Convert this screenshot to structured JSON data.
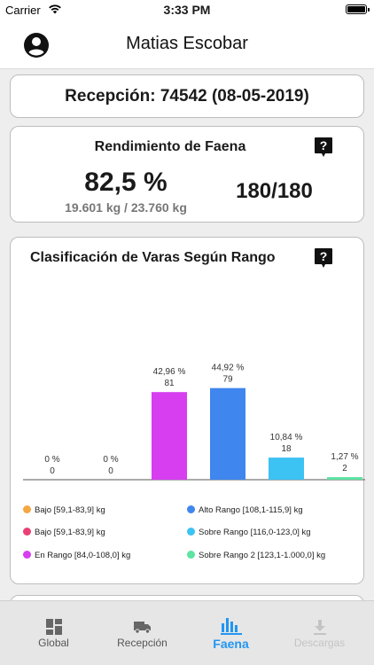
{
  "status": {
    "carrier": "Carrier",
    "time": "3:33 PM"
  },
  "header": {
    "title": "Matias Escobar"
  },
  "reception": {
    "text": "Recepción: 74542 (08-05-2019)"
  },
  "yield": {
    "title": "Rendimiento de Faena",
    "percent": "82,5 %",
    "kg": "19.601 kg / 23.760 kg",
    "count": "180/180"
  },
  "classification": {
    "title": "Clasificación de Varas Según Rango",
    "legend": [
      {
        "label": "Bajo [59,1-83,9] kg",
        "color": "#f5a742"
      },
      {
        "label": "Alto Rango [108,1-115,9] kg",
        "color": "#3f86ee"
      },
      {
        "label": "Bajo [59,1-83,9] kg",
        "color": "#ec3f74"
      },
      {
        "label": "Sobre Rango [116,0-123,0] kg",
        "color": "#3cc2f3"
      },
      {
        "label": "En Rango [84,0-108,0] kg",
        "color": "#d63ef0"
      },
      {
        "label": "Sobre Rango 2 [123,1-1.000,0] kg",
        "color": "#5de3a2"
      }
    ]
  },
  "chart_data": {
    "type": "bar",
    "categories": [
      "Bajo [59,1-83,9] kg",
      "Bajo [59,1-83,9] kg",
      "En Rango [84,0-108,0] kg",
      "Alto Rango [108,1-115,9] kg",
      "Sobre Rango [116,0-123,0] kg",
      "Sobre Rango 2 [123,1-1.000,0] kg"
    ],
    "values": [
      0,
      0,
      42.96,
      44.92,
      10.84,
      1.27
    ],
    "counts": [
      0,
      0,
      81,
      79,
      18,
      2
    ],
    "percent_labels": [
      "0 %",
      "0 %",
      "42,96 %",
      "44,92 %",
      "10,84 %",
      "1,27 %"
    ],
    "count_labels": [
      "0",
      "0",
      "81",
      "79",
      "18",
      "2"
    ],
    "colors": [
      "#f5a742",
      "#ec3f74",
      "#d63ef0",
      "#3f86ee",
      "#3cc2f3",
      "#5de3a2"
    ],
    "title": "Clasificación de Varas Según Rango",
    "xlabel": "",
    "ylabel": "",
    "ylim": [
      0,
      100
    ],
    "grid": false
  },
  "tabs": [
    {
      "label": "Global",
      "icon": "dashboard-icon"
    },
    {
      "label": "Recepción",
      "icon": "truck-icon"
    },
    {
      "label": "Faena",
      "icon": "bar-chart-icon"
    },
    {
      "label": "Descargas",
      "icon": "download-icon"
    }
  ]
}
